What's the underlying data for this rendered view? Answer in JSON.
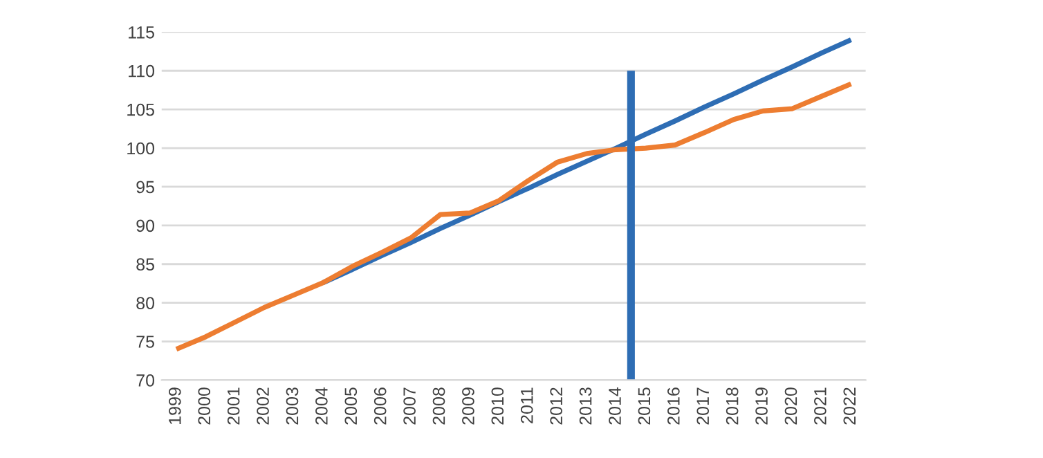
{
  "chart_data": {
    "type": "line",
    "x": [
      1999,
      2000,
      2001,
      2002,
      2003,
      2004,
      2005,
      2006,
      2007,
      2008,
      2009,
      2010,
      2011,
      2012,
      2013,
      2014,
      2015,
      2016,
      2017,
      2018,
      2019,
      2020,
      2021,
      2022
    ],
    "series": [
      {
        "color": "#2e6db4",
        "values": [
          null,
          null,
          null,
          null,
          null,
          82.6,
          84.3,
          86.1,
          87.8,
          89.6,
          91.3,
          93.1,
          94.8,
          96.6,
          98.3,
          100.0,
          101.8,
          103.5,
          105.3,
          107.0,
          108.8,
          110.5,
          112.3,
          114.0
        ]
      },
      {
        "color": "#ed7d31",
        "values": [
          74,
          75.6,
          77.5,
          79.4,
          81,
          82.6,
          84.7,
          86.5,
          88.4,
          91.4,
          91.6,
          93.2,
          95.8,
          98.2,
          99.3,
          99.8,
          100,
          100.4,
          102,
          103.7,
          104.8,
          105.1,
          106.7,
          108.3
        ]
      },
      {
        "color": "#2e6db4",
        "x": [
          2014.5,
          2014.5
        ],
        "values": [
          70,
          110
        ]
      }
    ],
    "xlim": [
      1998.5,
      2022.5
    ],
    "xticks": [
      1999,
      2000,
      2001,
      2002,
      2003,
      2004,
      2005,
      2006,
      2007,
      2008,
      2009,
      2010,
      2011,
      2012,
      2013,
      2014,
      2015,
      2016,
      2017,
      2018,
      2019,
      2020,
      2021,
      2022
    ],
    "ylim": [
      70,
      115
    ],
    "yticks": [
      70,
      75,
      80,
      85,
      90,
      95,
      100,
      105,
      110,
      115
    ],
    "grid": "y"
  }
}
